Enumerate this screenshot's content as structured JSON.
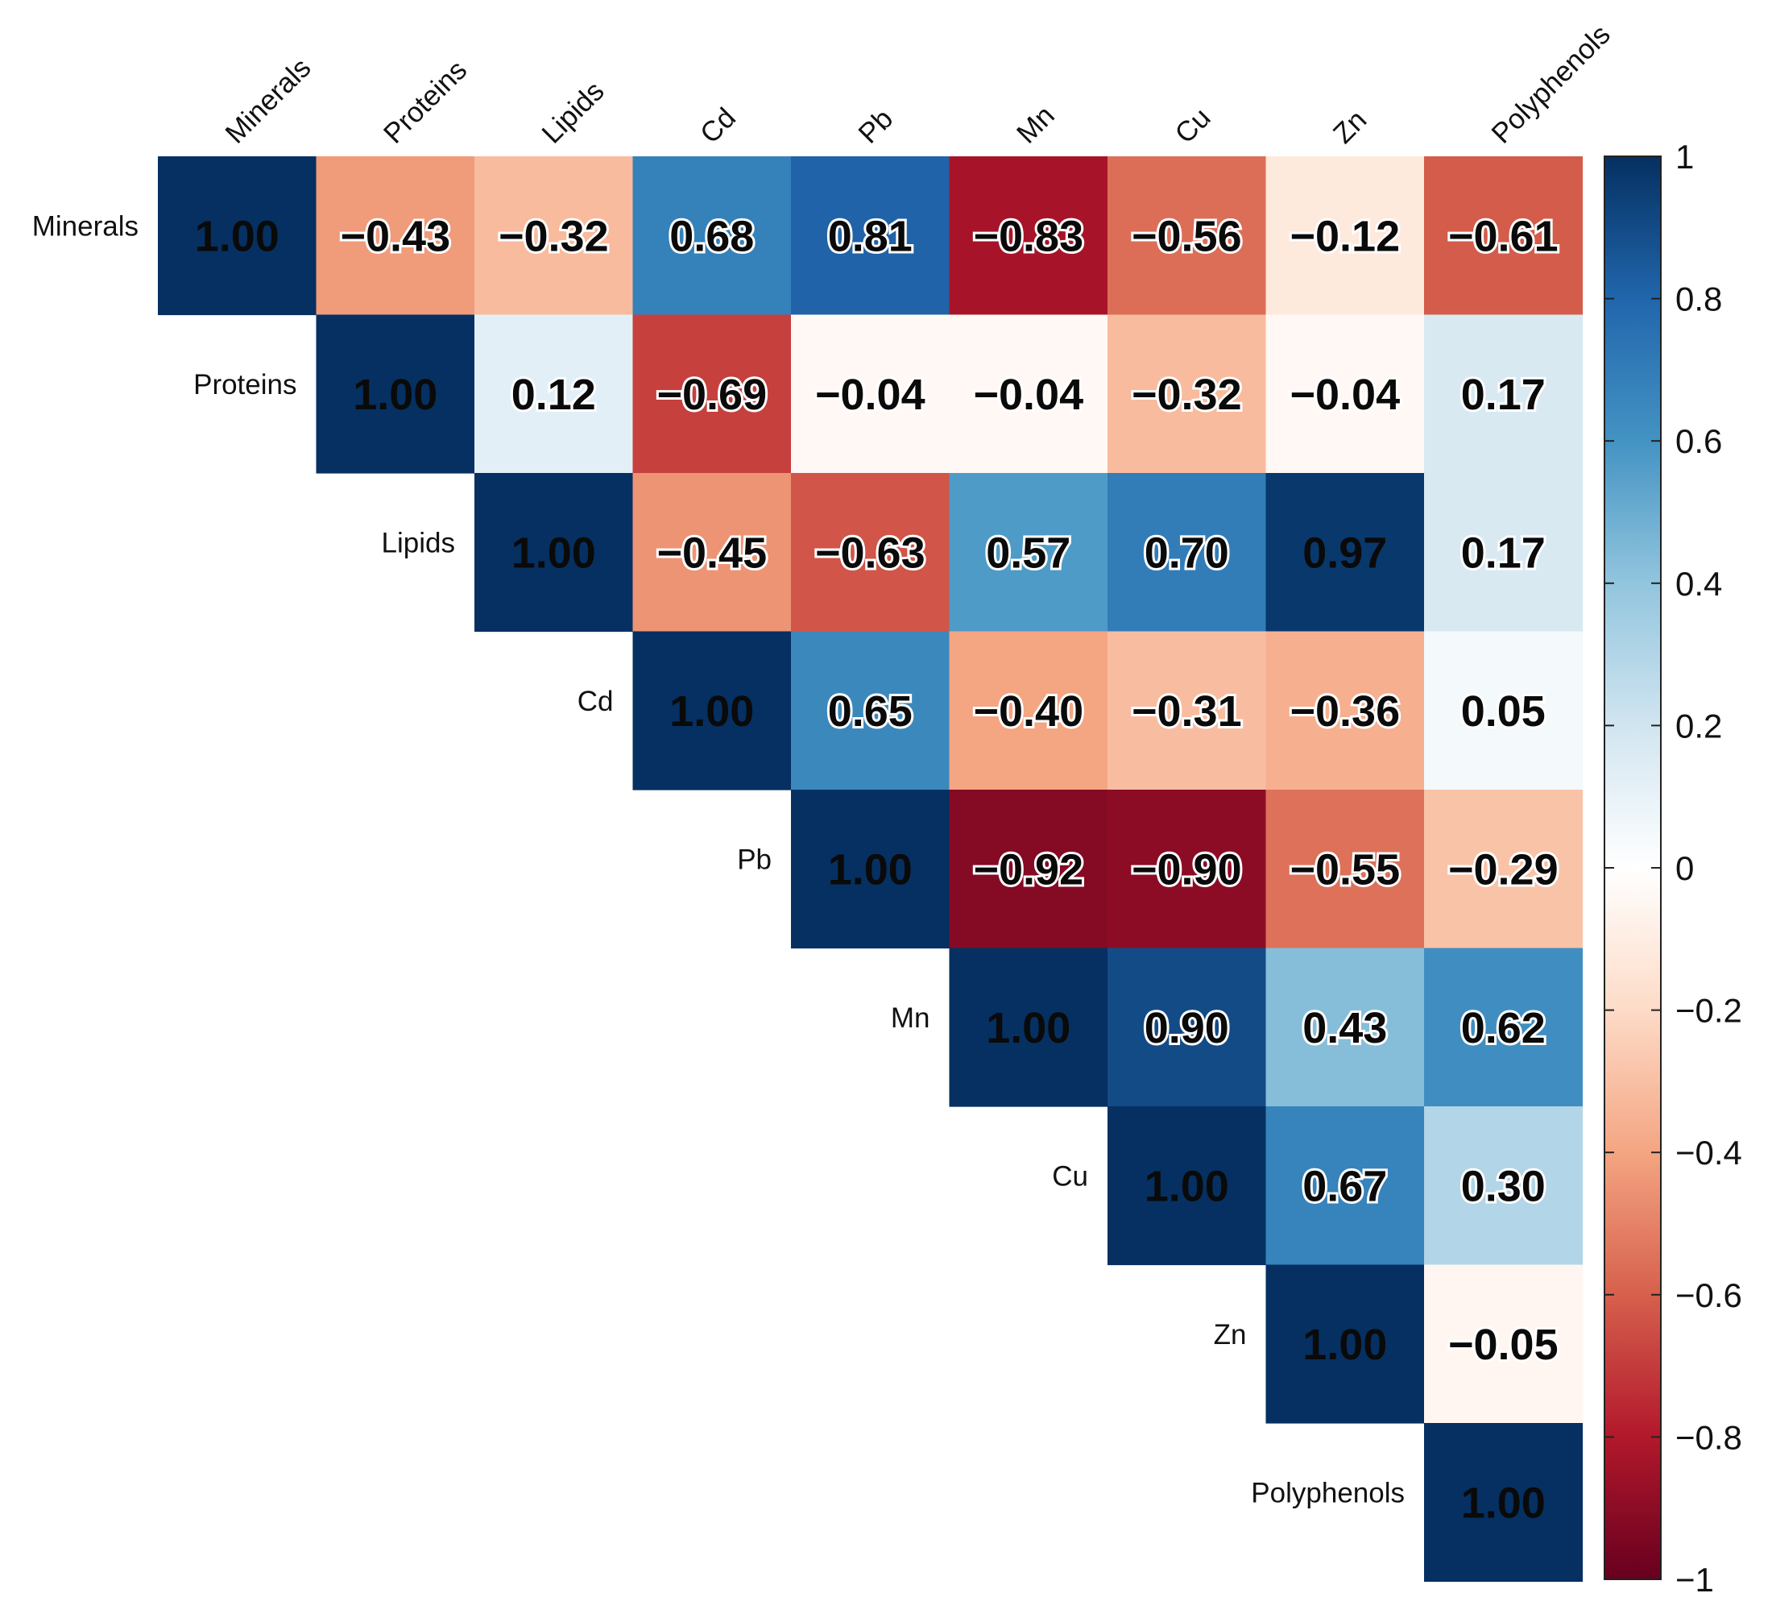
{
  "chart_data": {
    "type": "heatmap",
    "subtype": "correlation-matrix-upper-triangle",
    "variables": [
      "Minerals",
      "Proteins",
      "Lipids",
      "Cd",
      "Pb",
      "Mn",
      "Cu",
      "Zn",
      "Polyphenols"
    ],
    "matrix": [
      [
        1.0,
        -0.43,
        -0.32,
        0.68,
        0.81,
        -0.83,
        -0.56,
        -0.12,
        -0.61
      ],
      [
        null,
        1.0,
        0.12,
        -0.69,
        -0.04,
        -0.04,
        -0.32,
        -0.04,
        0.17
      ],
      [
        null,
        null,
        1.0,
        -0.45,
        -0.63,
        0.57,
        0.7,
        0.97,
        0.17
      ],
      [
        null,
        null,
        null,
        1.0,
        0.65,
        -0.4,
        -0.31,
        -0.36,
        0.05
      ],
      [
        null,
        null,
        null,
        null,
        1.0,
        -0.92,
        -0.9,
        -0.55,
        -0.29
      ],
      [
        null,
        null,
        null,
        null,
        null,
        1.0,
        0.9,
        0.43,
        0.62
      ],
      [
        null,
        null,
        null,
        null,
        null,
        null,
        1.0,
        0.67,
        0.3
      ],
      [
        null,
        null,
        null,
        null,
        null,
        null,
        null,
        1.0,
        -0.05
      ],
      [
        null,
        null,
        null,
        null,
        null,
        null,
        null,
        null,
        1.0
      ]
    ],
    "value_labels": [
      [
        "1.00",
        "−0.43",
        "−0.32",
        "0.68",
        "0.81",
        "−0.83",
        "−0.56",
        "−0.12",
        "−0.61"
      ],
      [
        null,
        "1.00",
        "0.12",
        "−0.69",
        "−0.04",
        "−0.04",
        "−0.32",
        "−0.04",
        "0.17"
      ],
      [
        null,
        null,
        "1.00",
        "−0.45",
        "−0.63",
        "0.57",
        "0.70",
        "0.97",
        "0.17"
      ],
      [
        null,
        null,
        null,
        "1.00",
        "0.65",
        "−0.40",
        "−0.31",
        "−0.36",
        "0.05"
      ],
      [
        null,
        null,
        null,
        null,
        "1.00",
        "−0.92",
        "−0.90",
        "−0.55",
        "−0.29"
      ],
      [
        null,
        null,
        null,
        null,
        null,
        "1.00",
        "0.90",
        "0.43",
        "0.62"
      ],
      [
        null,
        null,
        null,
        null,
        null,
        null,
        "1.00",
        "0.67",
        "0.30"
      ],
      [
        null,
        null,
        null,
        null,
        null,
        null,
        null,
        "1.00",
        "−0.05"
      ],
      [
        null,
        null,
        null,
        null,
        null,
        null,
        null,
        null,
        "1.00"
      ]
    ],
    "colorbar": {
      "range": [
        -1,
        1
      ],
      "ticks": [
        1,
        0.8,
        0.6,
        0.4,
        0.2,
        0,
        -0.2,
        -0.4,
        -0.6,
        -0.8,
        -1
      ],
      "tick_labels": [
        "1",
        "0.8",
        "0.6",
        "0.4",
        "0.2",
        "0",
        "−0.2",
        "−0.4",
        "−0.6",
        "−0.8",
        "−1"
      ],
      "colors": [
        "#67001f",
        "#b2182b",
        "#d6604d",
        "#f4a582",
        "#fddbc7",
        "#ffffff",
        "#d1e5f0",
        "#92c5de",
        "#4393c3",
        "#2166ac",
        "#053061"
      ]
    },
    "title": "",
    "xlabel": "",
    "ylabel": ""
  }
}
